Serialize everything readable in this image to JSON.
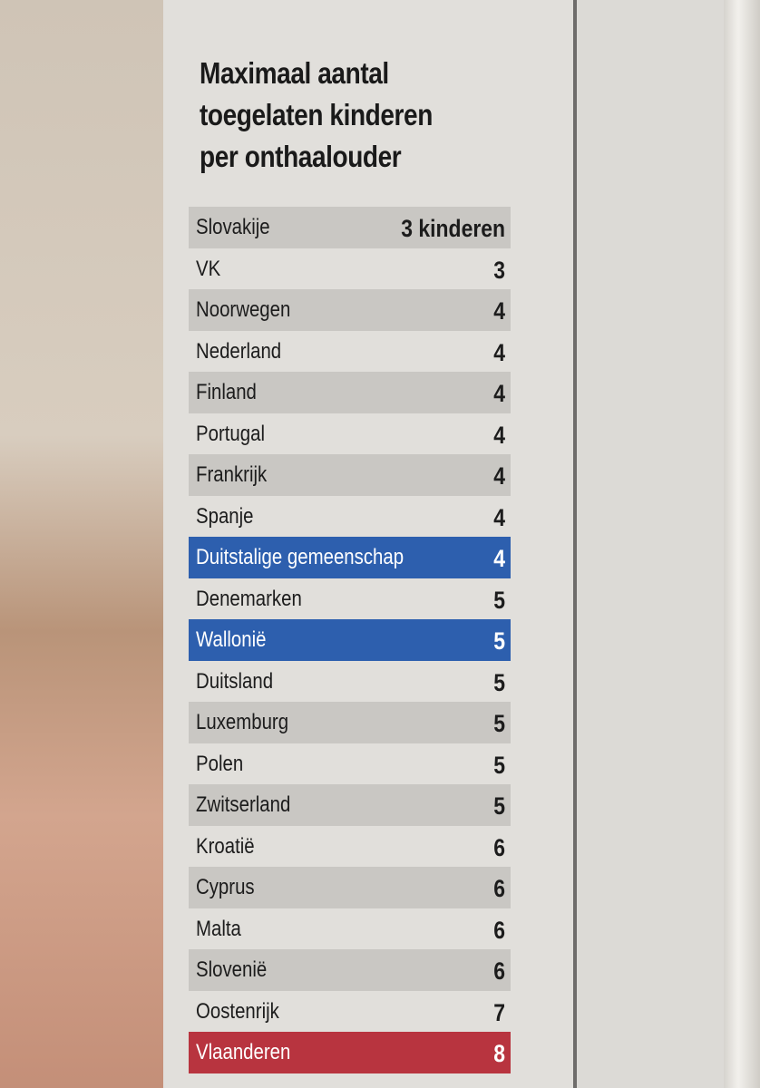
{
  "title": [
    "Maximaal aantal",
    "toegelaten kinderen",
    "per onthaalouder"
  ],
  "table": {
    "rows": [
      {
        "country": "Slovakije",
        "value": "3 kinderen"
      },
      {
        "country": "VK",
        "value": 3
      },
      {
        "country": "Noorwegen",
        "value": 4
      },
      {
        "country": "Nederland",
        "value": 4
      },
      {
        "country": "Finland",
        "value": 4
      },
      {
        "country": "Portugal",
        "value": 4
      },
      {
        "country": "Frankrijk",
        "value": 4
      },
      {
        "country": "Spanje",
        "value": 4
      },
      {
        "country": "Duitstalige gemeenschap",
        "value": 4,
        "color": "#2d5fae"
      },
      {
        "country": "Denemarken",
        "value": 5
      },
      {
        "country": "Wallonië",
        "value": 5,
        "color": "#2d5fae"
      },
      {
        "country": "Duitsland",
        "value": 5
      },
      {
        "country": "Luxemburg",
        "value": 5
      },
      {
        "country": "Polen",
        "value": 5
      },
      {
        "country": "Zwitserland",
        "value": 5
      },
      {
        "country": "Kroatië",
        "value": 6
      },
      {
        "country": "Cyprus",
        "value": 6
      },
      {
        "country": "Malta",
        "value": 6
      },
      {
        "country": "Slovenië",
        "value": 6
      },
      {
        "country": "Oostenrijk",
        "value": 7
      },
      {
        "country": "Vlaanderen",
        "value": 8,
        "color": "#b8343f"
      }
    ]
  }
}
